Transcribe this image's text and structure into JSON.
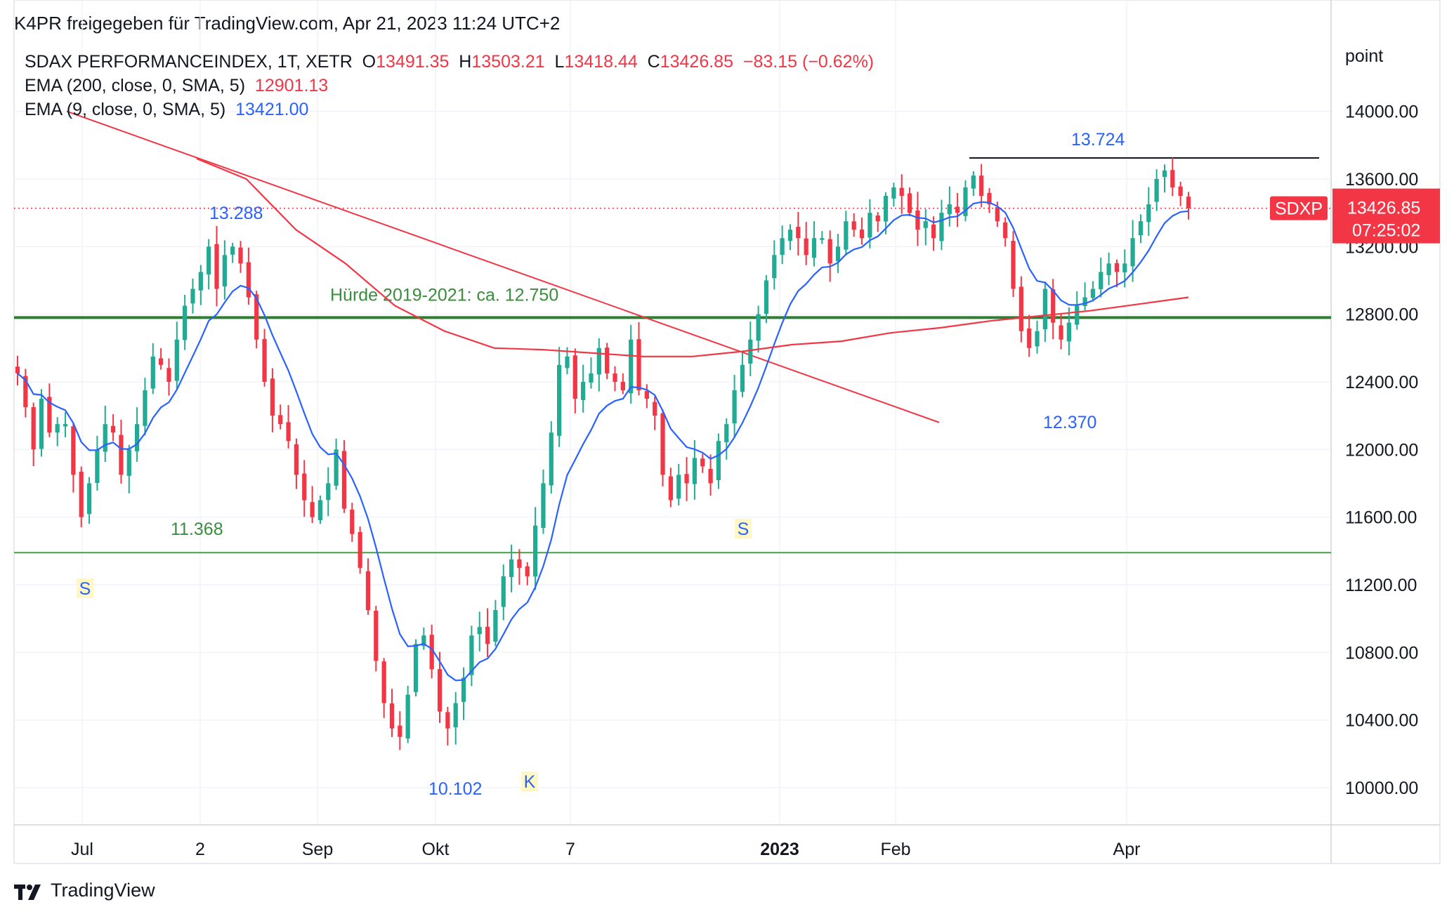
{
  "header": {
    "share_line": "K4PR freigegeben für TradingView.com, Apr 21, 2023 11:24 UTC+2"
  },
  "legend": {
    "symbol": "SDAX PERFORMANCEINDEX, 1T, XETR",
    "o_label": "O",
    "o_value": "13491.35",
    "h_label": "H",
    "h_value": "13503.21",
    "l_label": "L",
    "l_value": "13418.44",
    "c_label": "C",
    "c_value": "13426.85",
    "change": "−83.15 (−0.62%)",
    "ema200_label": "EMA (200, close, 0, SMA, 5)",
    "ema200_value": "12901.13",
    "ema9_label": "EMA (9, close, 0, SMA, 5)",
    "ema9_value": "13421.00"
  },
  "price_axis": {
    "unit": "point"
  },
  "price_tag": {
    "symbol": "SDXP",
    "price": "13426.85",
    "countdown": "07:25:02"
  },
  "footer": {
    "brand": "TradingView"
  },
  "colors": {
    "up": "#22ab94",
    "down": "#f23645",
    "ema9": "#2962ff",
    "ema200": "#f23645",
    "support": "#2e7d32",
    "annotation_blue": "#2962ff",
    "annotation_green": "#388e3c"
  },
  "chart_data": {
    "type": "candlestick",
    "title": "SDAX PERFORMANCEINDEX, 1T, XETR",
    "y_ticks": [
      10000,
      10400,
      10800,
      11200,
      11600,
      12000,
      12400,
      12800,
      13200,
      13600,
      14000
    ],
    "y_tick_labels": [
      "10000.00",
      "10400.00",
      "10800.00",
      "11200.00",
      "11600.00",
      "12000.00",
      "12400.00",
      "12800.00",
      "13200.00",
      "13600.00",
      "14000.00"
    ],
    "ylim": [
      9780,
      14430
    ],
    "x_labels": [
      "Jul",
      "2",
      "Sep",
      "Okt",
      "7",
      "2023",
      "Feb",
      "Apr"
    ],
    "close_path": [
      12450,
      12250,
      12000,
      12300,
      12100,
      12150,
      12150,
      11850,
      11600,
      11800,
      12000,
      12150,
      12100,
      11850,
      12000,
      12150,
      12350,
      12550,
      12500,
      12400,
      12650,
      12850,
      12950,
      13050,
      13200,
      12950,
      13150,
      13200,
      13100,
      12900,
      12650,
      12400,
      12200,
      12150,
      12050,
      11850,
      11700,
      11600,
      11700,
      11800,
      12000,
      11650,
      11500,
      11300,
      11050,
      10750,
      10500,
      10350,
      10300,
      10550,
      10850,
      10900,
      10700,
      10450,
      10350,
      10500,
      10650,
      10900,
      10950,
      10850,
      11050,
      11250,
      11350,
      11300,
      11250,
      11550,
      11800,
      12100,
      12500,
      12550,
      12300,
      12400,
      12450,
      12600,
      12450,
      12400,
      12350,
      12650,
      12350,
      12300,
      12200,
      11850,
      11700,
      11850,
      11800,
      11950,
      11900,
      11800,
      12050,
      12150,
      12350,
      12500,
      12650,
      12800,
      13000,
      13150,
      13250,
      13300,
      13250,
      13150,
      13250,
      13250,
      13100,
      13200,
      13350,
      13300,
      13250,
      13400,
      13350,
      13500,
      13550,
      13500,
      13400,
      13300,
      13350,
      13250,
      13400,
      13450,
      13400,
      13550,
      13620,
      13500,
      13450,
      13350,
      13250,
      12950,
      12700,
      12600,
      12700,
      12950,
      12750,
      12650,
      12750,
      12850,
      12900,
      12950,
      13050,
      13100,
      13050,
      13100,
      13250,
      13350,
      13450,
      13600,
      13650,
      13550,
      13500,
      13426.85
    ],
    "series": [
      {
        "name": "EMA (200, close, 0, SMA, 5)",
        "value": 12901.13
      },
      {
        "name": "EMA (9, close, 0, SMA, 5)",
        "value": 13421.0
      }
    ],
    "ema200_path": [
      13720,
      13600,
      13300,
      13100,
      12850,
      12700,
      12600,
      12590,
      12570,
      12550,
      12550,
      12580,
      12620,
      12640,
      12690,
      12720,
      12760,
      12790,
      12820,
      12860,
      12900
    ],
    "downtrend_line": [
      [
        0,
        14000
      ],
      [
        0.63,
        12160
      ]
    ],
    "hlines": [
      {
        "label": "Hürde 2019-2021: ca. 12.750",
        "value": 12780
      },
      {
        "label": "11.368",
        "value": 11390
      }
    ],
    "resistance": {
      "label": "13.724",
      "value": 13724
    },
    "last_price": 13426.85,
    "annotations": [
      {
        "text": "13.288",
        "kind": "high"
      },
      {
        "text": "10.102",
        "kind": "low"
      },
      {
        "text": "12.370",
        "kind": "low"
      },
      {
        "text": "S",
        "kind": "marker"
      },
      {
        "text": "S",
        "kind": "marker"
      },
      {
        "text": "K",
        "kind": "marker"
      }
    ]
  }
}
